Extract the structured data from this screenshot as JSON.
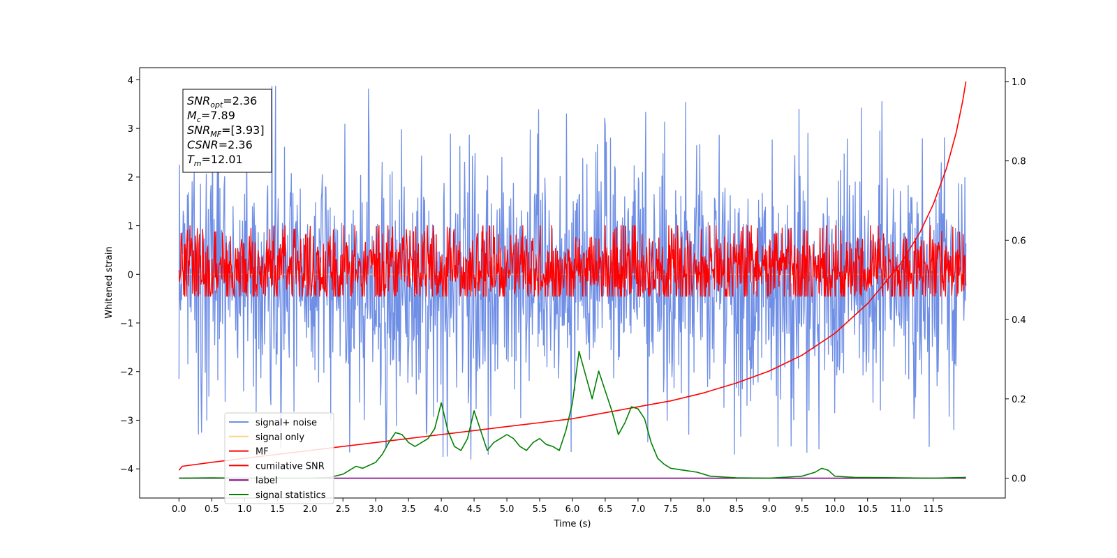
{
  "chart_data": {
    "type": "line",
    "xlabel": "Time (s)",
    "ylabel": "Whitened strain",
    "xlim": [
      -0.6,
      12.6
    ],
    "ylim": [
      -4.6,
      4.25
    ],
    "ylim_right": [
      -0.05,
      1.035
    ],
    "x_ticks": [
      "0.0",
      "0.5",
      "1.0",
      "1.5",
      "2.0",
      "2.5",
      "3.0",
      "3.5",
      "4.0",
      "4.5",
      "5.0",
      "5.5",
      "6.0",
      "6.5",
      "7.0",
      "7.5",
      "8.0",
      "8.5",
      "9.0",
      "9.5",
      "10.0",
      "10.5",
      "11.0",
      "11.5"
    ],
    "y_ticks": [
      "4",
      "3",
      "2",
      "1",
      "0",
      "−1",
      "−2",
      "−3",
      "−4"
    ],
    "y_ticks_right": [
      "1.0",
      "0.8",
      "0.6",
      "0.4",
      "0.2",
      "0.0"
    ],
    "grid": false,
    "legend_position": "lower-left",
    "annotation": [
      {
        "base": "SNR",
        "sub": "opt",
        "rest": "=2.36"
      },
      {
        "base": "M",
        "sub": "c",
        "rest": "=7.89"
      },
      {
        "base": "SNR",
        "sub": "MF",
        "rest": "=[3.93]"
      },
      {
        "base": "CSNR",
        "sub": "",
        "rest": "=2.36"
      },
      {
        "base": "T",
        "sub": "m",
        "rest": "=12.01"
      }
    ],
    "series": [
      {
        "name": "signal+ noise",
        "color": "#6f8fe6",
        "axis": "left",
        "kind": "noise",
        "x_range": [
          0,
          12.0
        ],
        "typical_range": [
          -1.5,
          1.3
        ],
        "extremes": [
          -3.8,
          3.87
        ]
      },
      {
        "name": "signal only",
        "color": "#ffd27f",
        "axis": "left",
        "kind": "flat",
        "x_range": [
          0,
          12.0
        ],
        "value": 0
      },
      {
        "name": "MF",
        "color": "#ff0000",
        "axis": "left",
        "kind": "noise",
        "x_range": [
          0,
          12.0
        ],
        "typical_range": [
          -0.4,
          0.6
        ],
        "extremes": [
          -0.45,
          1.0
        ]
      },
      {
        "name": "cumilative SNR",
        "color": "#ff0000",
        "axis": "right",
        "x": [
          0.0,
          0.05,
          0.5,
          1.0,
          1.5,
          2.0,
          2.5,
          3.0,
          3.5,
          4.0,
          4.5,
          5.0,
          5.5,
          6.0,
          6.5,
          7.0,
          7.5,
          8.0,
          8.5,
          9.0,
          9.5,
          10.0,
          10.5,
          11.0,
          11.3,
          11.5,
          11.7,
          11.85,
          11.95,
          12.0
        ],
        "y": [
          0.02,
          0.03,
          0.04,
          0.05,
          0.06,
          0.07,
          0.08,
          0.09,
          0.1,
          0.11,
          0.12,
          0.13,
          0.14,
          0.15,
          0.165,
          0.18,
          0.195,
          0.215,
          0.24,
          0.27,
          0.31,
          0.365,
          0.44,
          0.54,
          0.62,
          0.69,
          0.78,
          0.87,
          0.95,
          1.0
        ]
      },
      {
        "name": "label",
        "color": "#800080",
        "axis": "right",
        "x": [
          0.0,
          12.0
        ],
        "y": [
          0.0,
          0.0
        ]
      },
      {
        "name": "signal statistics",
        "color": "#008000",
        "axis": "right",
        "x": [
          0.0,
          0.5,
          1.0,
          1.5,
          2.0,
          2.3,
          2.5,
          2.7,
          2.8,
          3.0,
          3.1,
          3.2,
          3.3,
          3.4,
          3.5,
          3.6,
          3.8,
          3.9,
          4.0,
          4.1,
          4.2,
          4.3,
          4.4,
          4.5,
          4.6,
          4.7,
          4.8,
          4.9,
          5.0,
          5.1,
          5.2,
          5.3,
          5.4,
          5.5,
          5.6,
          5.7,
          5.8,
          5.9,
          6.0,
          6.1,
          6.2,
          6.3,
          6.4,
          6.5,
          6.6,
          6.7,
          6.8,
          6.9,
          7.0,
          7.1,
          7.2,
          7.3,
          7.4,
          7.5,
          7.7,
          7.9,
          8.1,
          8.5,
          9.0,
          9.5,
          9.7,
          9.8,
          9.9,
          10.0,
          10.3,
          11.0,
          11.5,
          12.0
        ],
        "y": [
          0.0,
          0.001,
          0.0,
          0.0,
          0.0,
          0.002,
          0.01,
          0.03,
          0.025,
          0.04,
          0.06,
          0.09,
          0.115,
          0.11,
          0.09,
          0.08,
          0.1,
          0.125,
          0.19,
          0.12,
          0.08,
          0.07,
          0.1,
          0.17,
          0.12,
          0.07,
          0.09,
          0.1,
          0.11,
          0.1,
          0.08,
          0.07,
          0.09,
          0.1,
          0.085,
          0.08,
          0.07,
          0.12,
          0.19,
          0.32,
          0.26,
          0.2,
          0.27,
          0.22,
          0.17,
          0.11,
          0.14,
          0.18,
          0.175,
          0.15,
          0.09,
          0.05,
          0.035,
          0.025,
          0.02,
          0.015,
          0.005,
          0.001,
          0.0,
          0.005,
          0.015,
          0.025,
          0.02,
          0.005,
          0.002,
          0.001,
          0.0,
          0.002
        ]
      }
    ]
  }
}
